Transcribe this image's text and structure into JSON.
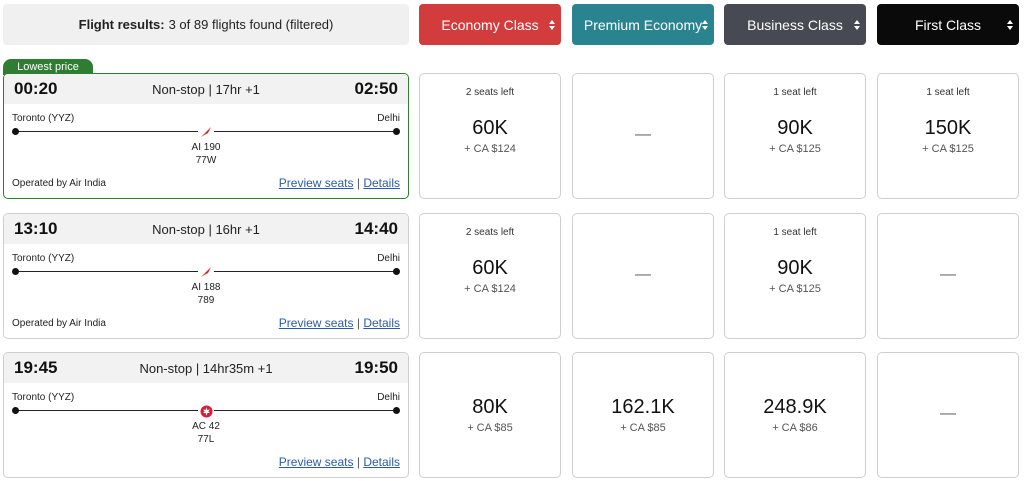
{
  "summary": {
    "label": "Flight results:",
    "text": "3 of 89 flights found (filtered)"
  },
  "cabins": [
    {
      "label": "Economy Class",
      "color": "#d23c3c"
    },
    {
      "label": "Premium Economy",
      "color": "#2a8490"
    },
    {
      "label": "Business Class",
      "color": "#474a52"
    },
    {
      "label": "First Class",
      "color": "#0a0a0a"
    }
  ],
  "badge": "Lowest price",
  "links": {
    "preview": "Preview seats",
    "sep": "|",
    "details": "Details"
  },
  "flights": [
    {
      "depart": "00:20",
      "arrive": "02:50",
      "duration": "Non-stop | 17hr +1",
      "origin": "Toronto (YYZ)",
      "destination": "Delhi",
      "flight_no": "AI 190",
      "aircraft": "77W",
      "operated": "Operated by Air India",
      "logo": "air-india-logo-icon",
      "fares": [
        {
          "seats": "2 seats left",
          "miles": "60K",
          "tax": "+ CA $124"
        },
        {
          "seats": "",
          "miles": "",
          "tax": "",
          "none": "—"
        },
        {
          "seats": "1 seat left",
          "miles": "90K",
          "tax": "+ CA $125"
        },
        {
          "seats": "1 seat left",
          "miles": "150K",
          "tax": "+ CA $125"
        }
      ]
    },
    {
      "depart": "13:10",
      "arrive": "14:40",
      "duration": "Non-stop | 16hr +1",
      "origin": "Toronto (YYZ)",
      "destination": "Delhi",
      "flight_no": "AI 188",
      "aircraft": "789",
      "operated": "Operated by Air India",
      "logo": "air-india-logo-icon",
      "fares": [
        {
          "seats": "2 seats left",
          "miles": "60K",
          "tax": "+ CA $124"
        },
        {
          "seats": "",
          "miles": "",
          "tax": "",
          "none": "—"
        },
        {
          "seats": "1 seat left",
          "miles": "90K",
          "tax": "+ CA $125"
        },
        {
          "seats": "",
          "miles": "",
          "tax": "",
          "none": "—"
        }
      ]
    },
    {
      "depart": "19:45",
      "arrive": "19:50",
      "duration": "Non-stop | 14hr35m +1",
      "origin": "Toronto (YYZ)",
      "destination": "Delhi",
      "flight_no": "AC 42",
      "aircraft": "77L",
      "operated": "",
      "logo": "air-canada-logo-icon",
      "fares": [
        {
          "seats": "",
          "miles": "80K",
          "tax": "+ CA $85"
        },
        {
          "seats": "",
          "miles": "162.1K",
          "tax": "+ CA $85"
        },
        {
          "seats": "",
          "miles": "248.9K",
          "tax": "+ CA $86"
        },
        {
          "seats": "",
          "miles": "",
          "tax": "",
          "none": "—"
        }
      ]
    }
  ]
}
